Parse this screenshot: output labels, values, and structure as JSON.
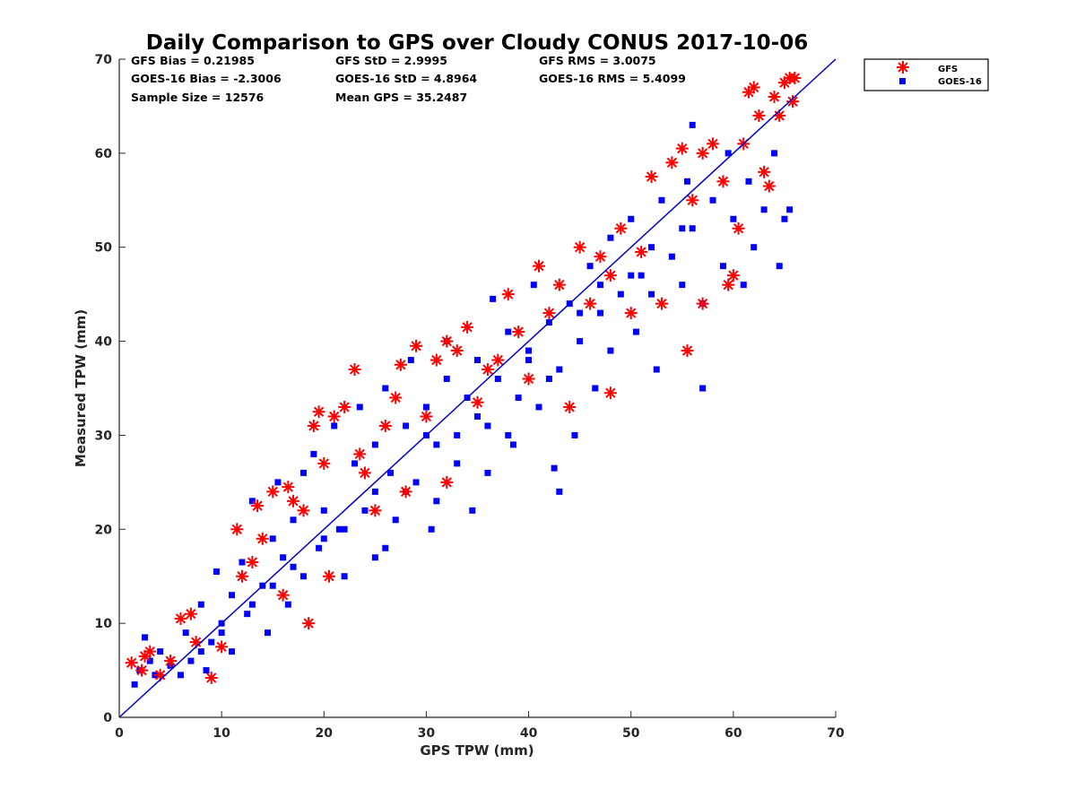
{
  "chart_data": {
    "type": "scatter",
    "title": "Daily Comparison to GPS over Cloudy CONUS 2017-10-06",
    "xlabel": "GPS TPW (mm)",
    "ylabel": "Measured TPW (mm)",
    "xlim": [
      0,
      70
    ],
    "ylim": [
      0,
      70
    ],
    "xticks": [
      "0",
      "10",
      "20",
      "30",
      "40",
      "50",
      "60",
      "70"
    ],
    "yticks": [
      "0",
      "10",
      "20",
      "30",
      "40",
      "50",
      "60",
      "70"
    ],
    "grid": false,
    "legend_position": "outside-top-right",
    "reference_line": {
      "x": [
        0,
        70
      ],
      "y": [
        0,
        70
      ],
      "color": "#0000cc"
    },
    "stats": {
      "gfs_bias": "GFS Bias = 0.21985",
      "gfs_std": "GFS StD = 2.9995",
      "gfs_rms": "GFS RMS = 3.0075",
      "goes_bias": "GOES-16 Bias = -2.3006",
      "goes_std": "GOES-16 StD = 4.8964",
      "goes_rms": "GOES-16 RMS = 5.4099",
      "sample_size": "Sample Size = 12576",
      "mean_gps": "Mean GPS = 35.2487"
    },
    "series": [
      {
        "name": "GOES-16",
        "marker": "square",
        "color": "#0000ff",
        "points": [
          [
            1.5,
            3.5
          ],
          [
            2,
            5
          ],
          [
            2.5,
            8.5
          ],
          [
            3,
            6
          ],
          [
            3.5,
            4.5
          ],
          [
            4,
            7
          ],
          [
            5,
            5.5
          ],
          [
            6,
            4.5
          ],
          [
            6.5,
            9
          ],
          [
            7,
            6
          ],
          [
            8,
            12
          ],
          [
            8.5,
            5
          ],
          [
            9,
            8
          ],
          [
            9.5,
            15.5
          ],
          [
            10,
            10
          ],
          [
            11,
            13
          ],
          [
            11,
            7
          ],
          [
            12,
            16.5
          ],
          [
            12.5,
            11
          ],
          [
            13,
            23
          ],
          [
            14,
            14
          ],
          [
            14.5,
            9
          ],
          [
            15,
            19
          ],
          [
            15.5,
            25
          ],
          [
            16,
            17
          ],
          [
            16.5,
            12
          ],
          [
            17,
            21
          ],
          [
            18,
            15
          ],
          [
            18,
            26
          ],
          [
            19,
            28
          ],
          [
            19.5,
            18
          ],
          [
            20,
            22
          ],
          [
            21,
            31
          ],
          [
            21.5,
            20
          ],
          [
            22,
            15
          ],
          [
            23,
            27
          ],
          [
            23.5,
            33
          ],
          [
            24,
            22
          ],
          [
            25,
            29
          ],
          [
            25,
            17
          ],
          [
            26,
            35
          ],
          [
            26.5,
            26
          ],
          [
            27,
            21
          ],
          [
            28,
            31
          ],
          [
            28.5,
            38
          ],
          [
            29,
            25
          ],
          [
            30,
            33
          ],
          [
            30.5,
            20
          ],
          [
            31,
            29
          ],
          [
            32,
            36
          ],
          [
            32,
            40
          ],
          [
            33,
            27
          ],
          [
            34,
            34
          ],
          [
            34.5,
            22
          ],
          [
            35,
            38
          ],
          [
            36,
            31
          ],
          [
            36.5,
            44.5
          ],
          [
            37,
            36
          ],
          [
            38,
            41
          ],
          [
            38.5,
            29
          ],
          [
            39,
            34
          ],
          [
            40,
            39
          ],
          [
            40.5,
            46
          ],
          [
            41,
            33
          ],
          [
            42,
            42
          ],
          [
            42.5,
            26.5
          ],
          [
            43,
            37
          ],
          [
            44,
            44
          ],
          [
            44.5,
            30
          ],
          [
            45,
            40
          ],
          [
            46,
            48
          ],
          [
            46.5,
            35
          ],
          [
            47,
            43
          ],
          [
            48,
            51
          ],
          [
            48,
            39
          ],
          [
            49,
            45
          ],
          [
            50,
            53
          ],
          [
            50.5,
            41
          ],
          [
            51,
            47
          ],
          [
            52,
            50
          ],
          [
            52.5,
            37
          ],
          [
            53,
            55
          ],
          [
            54,
            49
          ],
          [
            55,
            46
          ],
          [
            55.5,
            57
          ],
          [
            56,
            52
          ],
          [
            56,
            63
          ],
          [
            57,
            35
          ],
          [
            57,
            44
          ],
          [
            58,
            55
          ],
          [
            59,
            48
          ],
          [
            59.5,
            60
          ],
          [
            60,
            53
          ],
          [
            61,
            46
          ],
          [
            61.5,
            57
          ],
          [
            62,
            50
          ],
          [
            63,
            54
          ],
          [
            64,
            60
          ],
          [
            64.5,
            48
          ],
          [
            65,
            53
          ],
          [
            65.5,
            54
          ],
          [
            35,
            32
          ],
          [
            30,
            30
          ],
          [
            40,
            38
          ],
          [
            45,
            43
          ],
          [
            25,
            24
          ],
          [
            20,
            19
          ],
          [
            15,
            14
          ],
          [
            10,
            9
          ],
          [
            50,
            47
          ],
          [
            55,
            52
          ],
          [
            38,
            30
          ],
          [
            42,
            36
          ],
          [
            28,
            24
          ],
          [
            33,
            30
          ],
          [
            47,
            46
          ],
          [
            52,
            45
          ],
          [
            43,
            24
          ],
          [
            36,
            26
          ],
          [
            31,
            23
          ],
          [
            26,
            18
          ],
          [
            22,
            20
          ],
          [
            17,
            16
          ],
          [
            13,
            12
          ],
          [
            8,
            7
          ]
        ]
      },
      {
        "name": "GFS",
        "marker": "asterisk",
        "color": "#ff0000",
        "points": [
          [
            1.2,
            5.8
          ],
          [
            2.2,
            5
          ],
          [
            2.5,
            6.5
          ],
          [
            3,
            7
          ],
          [
            4,
            4.5
          ],
          [
            5,
            6
          ],
          [
            6,
            10.5
          ],
          [
            7,
            11
          ],
          [
            7.5,
            8
          ],
          [
            9,
            4.2
          ],
          [
            10,
            7.5
          ],
          [
            11.5,
            20
          ],
          [
            12,
            15
          ],
          [
            13,
            16.5
          ],
          [
            13.5,
            22.5
          ],
          [
            14,
            19
          ],
          [
            15,
            24
          ],
          [
            16,
            13
          ],
          [
            16.5,
            24.5
          ],
          [
            17,
            23
          ],
          [
            18,
            22
          ],
          [
            18.5,
            10
          ],
          [
            19,
            31
          ],
          [
            19.5,
            32.5
          ],
          [
            20,
            27
          ],
          [
            20.5,
            15
          ],
          [
            21,
            32
          ],
          [
            22,
            33
          ],
          [
            23,
            37
          ],
          [
            23.5,
            28
          ],
          [
            24,
            26
          ],
          [
            25,
            22
          ],
          [
            26,
            31
          ],
          [
            27,
            34
          ],
          [
            27.5,
            37.5
          ],
          [
            28,
            24
          ],
          [
            29,
            39.5
          ],
          [
            30,
            32
          ],
          [
            31,
            38
          ],
          [
            32,
            40
          ],
          [
            32,
            25
          ],
          [
            33,
            39
          ],
          [
            34,
            41.5
          ],
          [
            35,
            33.5
          ],
          [
            36,
            37
          ],
          [
            37,
            38
          ],
          [
            38,
            45
          ],
          [
            39,
            41
          ],
          [
            40,
            36
          ],
          [
            41,
            48
          ],
          [
            42,
            43
          ],
          [
            43,
            46
          ],
          [
            44,
            33
          ],
          [
            45,
            50
          ],
          [
            46,
            44
          ],
          [
            47,
            49
          ],
          [
            48,
            47
          ],
          [
            48,
            34.5
          ],
          [
            49,
            52
          ],
          [
            50,
            43
          ],
          [
            51,
            49.5
          ],
          [
            52,
            57.5
          ],
          [
            53,
            44
          ],
          [
            54,
            59
          ],
          [
            55,
            60.5
          ],
          [
            55.5,
            39
          ],
          [
            56,
            55
          ],
          [
            57,
            60
          ],
          [
            57,
            44
          ],
          [
            58,
            61
          ],
          [
            59,
            57
          ],
          [
            59.5,
            46
          ],
          [
            60,
            47
          ],
          [
            60.5,
            52
          ],
          [
            61,
            61
          ],
          [
            61.5,
            66.5
          ],
          [
            62,
            67
          ],
          [
            62.5,
            64
          ],
          [
            63,
            58
          ],
          [
            63.5,
            56.5
          ],
          [
            64,
            66
          ],
          [
            64.5,
            64
          ],
          [
            65,
            67.5
          ],
          [
            65.5,
            68
          ],
          [
            65.8,
            65.5
          ],
          [
            66,
            68
          ]
        ]
      }
    ]
  }
}
